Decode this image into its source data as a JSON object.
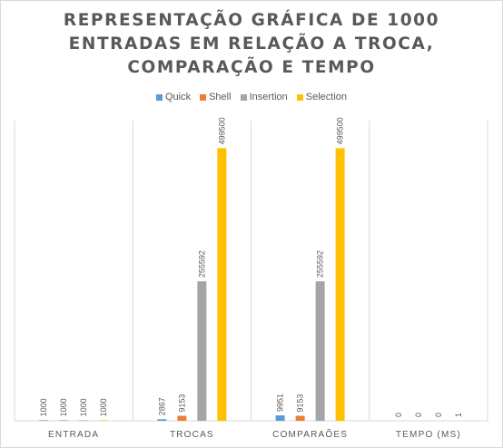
{
  "chart_data": {
    "type": "bar",
    "title_lines": [
      "REPRESENTAÇÃO GRÁFICA DE 1000",
      "ENTRADAS EM RELAÇÃO A TROCA,",
      "COMPARAÇÃO E TEMPO"
    ],
    "categories": [
      "ENTRADA",
      "TROCAS",
      "COMPARAÕES",
      "TEMPO (MS)"
    ],
    "series": [
      {
        "name": "Quick",
        "color": "#5b9bd5",
        "values": [
          1000,
          2867,
          9951,
          0
        ]
      },
      {
        "name": "Shell",
        "color": "#ed7d31",
        "values": [
          1000,
          9153,
          9153,
          0
        ]
      },
      {
        "name": "Insertion",
        "color": "#a5a5a5",
        "values": [
          1000,
          255592,
          255592,
          0
        ]
      },
      {
        "name": "Selection",
        "color": "#ffc000",
        "values": [
          1000,
          499500,
          499500,
          1
        ]
      }
    ],
    "ylim": [
      0,
      550000
    ],
    "legend_position": "top",
    "grid": false
  }
}
